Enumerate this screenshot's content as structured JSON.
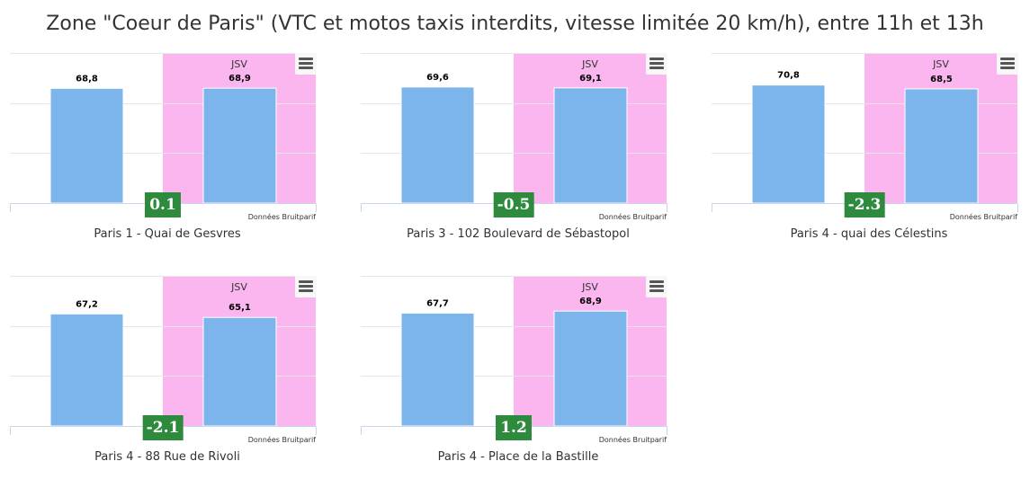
{
  "page": {
    "title": "Zone \"Coeur de Paris\" (VTC et motos taxis interdits, vitesse limitée 20 km/h), entre 11h et 13h"
  },
  "colors": {
    "bar": "#7cb5ec",
    "jsv_band": "#fbb6ef",
    "badge": "#2e8b3e",
    "grid": "#e6e6e6"
  },
  "chart_data": [
    {
      "type": "bar",
      "title": "Paris 1 - Quai de Gesvres",
      "categories": [
        "",
        ""
      ],
      "values": [
        68.8,
        68.9
      ],
      "value_labels": [
        "68,8",
        "68,9"
      ],
      "band_label": "JSV",
      "band_category": 1,
      "difference": "0.1",
      "credit": "Données Bruitparif",
      "ylim": [
        0,
        90
      ],
      "grid": true
    },
    {
      "type": "bar",
      "title": "Paris 3 - 102 Boulevard de Sébastopol",
      "categories": [
        "",
        ""
      ],
      "values": [
        69.6,
        69.1
      ],
      "value_labels": [
        "69,6",
        "69,1"
      ],
      "band_label": "JSV",
      "band_category": 1,
      "difference": "-0.5",
      "credit": "Données Bruitparif",
      "ylim": [
        0,
        90
      ],
      "grid": true
    },
    {
      "type": "bar",
      "title": "Paris 4 - quai des Célestins",
      "categories": [
        "",
        ""
      ],
      "values": [
        70.8,
        68.5
      ],
      "value_labels": [
        "70,8",
        "68,5"
      ],
      "band_label": "JSV",
      "band_category": 1,
      "difference": "-2.3",
      "credit": "Données Bruitparif",
      "ylim": [
        0,
        90
      ],
      "grid": true
    },
    {
      "type": "bar",
      "title": "Paris 4 - 88 Rue de Rivoli",
      "categories": [
        "",
        ""
      ],
      "values": [
        67.2,
        65.1
      ],
      "value_labels": [
        "67,2",
        "65,1"
      ],
      "band_label": "JSV",
      "band_category": 1,
      "difference": "-2.1",
      "credit": "Données Bruitparif",
      "ylim": [
        0,
        90
      ],
      "grid": true
    },
    {
      "type": "bar",
      "title": "Paris 4 - Place de la Bastille",
      "categories": [
        "",
        ""
      ],
      "values": [
        67.7,
        68.9
      ],
      "value_labels": [
        "67,7",
        "68,9"
      ],
      "band_label": "JSV",
      "band_category": 1,
      "difference": "1.2",
      "credit": "Données Bruitparif",
      "ylim": [
        0,
        90
      ],
      "grid": true
    }
  ]
}
